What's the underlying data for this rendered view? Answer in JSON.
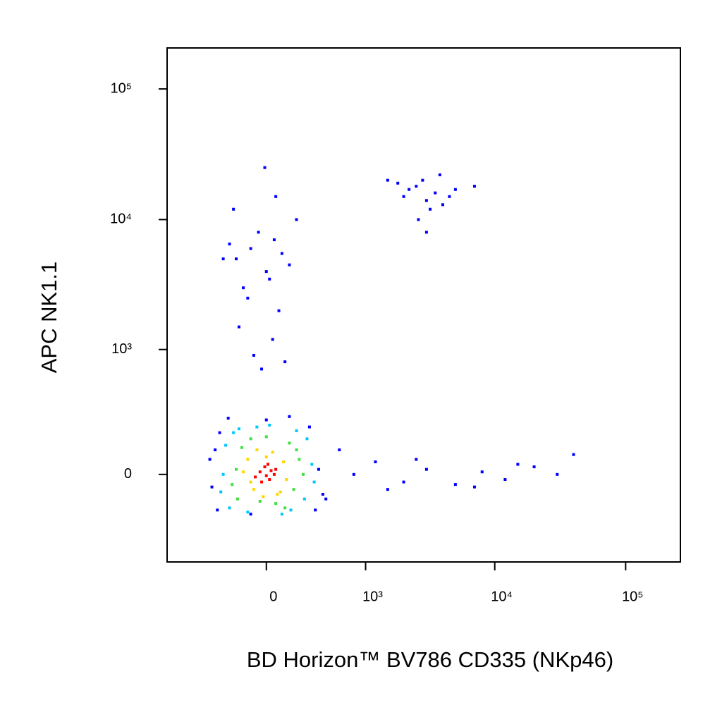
{
  "chart_data": {
    "type": "scatter",
    "x_label": "BD Horizon™ BV786 CD335 (NKp46)",
    "y_label": "APC NK1.1",
    "xscale": "biexponential",
    "yscale": "biexponential",
    "xlim": [
      -1000,
      262000
    ],
    "ylim": [
      -500,
      206000
    ],
    "xticks": [
      0,
      {
        "value": 1000,
        "label": "10³"
      },
      {
        "value": 10000,
        "label": "10⁴"
      },
      {
        "value": 100000,
        "label": "10⁵"
      }
    ],
    "yticks": [
      0,
      {
        "value": 1000,
        "label": "10³"
      },
      {
        "value": 10000,
        "label": "10⁴"
      },
      {
        "value": 100000,
        "label": "10⁵"
      }
    ],
    "series": [
      {
        "color": "#0000ff",
        "x": [
          -400,
          380,
          -370,
          420,
          -350,
          300,
          -420,
          450,
          -260,
          0,
          150,
          -100,
          350,
          -330,
          -200,
          -100,
          0,
          50,
          -150,
          100,
          -50,
          -250,
          150,
          -300,
          20,
          -120,
          80,
          -180,
          40,
          -80,
          120,
          -30,
          200,
          -220,
          60,
          -10,
          2000,
          3000,
          2500,
          3500,
          4000,
          2800,
          3200,
          2200,
          1800,
          4500,
          5000,
          2600,
          3800,
          7000,
          1500,
          3000,
          800,
          1200,
          2000,
          3000,
          5000,
          8000,
          12000,
          20000,
          40000,
          600,
          1500,
          2500,
          7000,
          15000,
          30000
        ],
        "values": [
          -50,
          20,
          100,
          -80,
          -150,
          210,
          60,
          -100,
          260,
          250,
          270,
          -170,
          -150,
          180,
          5000,
          6000,
          4000,
          7000,
          3000,
          5500,
          8000,
          6500,
          4500,
          5000,
          3500,
          2500,
          2000,
          1500,
          1200,
          900,
          800,
          700,
          10000,
          12000,
          15000,
          25000,
          15000,
          14000,
          18000,
          16000,
          13000,
          20000,
          12000,
          17000,
          19000,
          15000,
          17000,
          10000,
          22000,
          18000,
          20000,
          8000,
          0,
          50,
          -30,
          20,
          -40,
          10,
          -20,
          30,
          80,
          100,
          -60,
          60,
          -50,
          40,
          0
        ]
      },
      {
        "color": "#00c8ff",
        "x": [
          -300,
          260,
          -280,
          320,
          -250,
          280,
          -180,
          200,
          -120,
          100,
          -320,
          340,
          20,
          -60,
          160,
          -220
        ],
        "values": [
          0,
          -100,
          120,
          40,
          -140,
          150,
          200,
          190,
          -160,
          -170,
          -70,
          -30,
          220,
          210,
          -150,
          180
        ]
      },
      {
        "color": "#40e040",
        "x": [
          -200,
          180,
          -160,
          220,
          -230,
          150,
          -100,
          60,
          -40,
          250,
          -190,
          200,
          0,
          120
        ],
        "values": [
          20,
          -60,
          110,
          60,
          -40,
          130,
          150,
          -120,
          -110,
          0,
          -100,
          100,
          160,
          -140
        ]
      },
      {
        "color": "#ffd700",
        "x": [
          -120,
          90,
          -80,
          110,
          -150,
          40,
          -60,
          130,
          -20,
          70,
          -100,
          0
        ],
        "values": [
          60,
          -70,
          -60,
          50,
          10,
          90,
          100,
          -20,
          -90,
          -80,
          -30,
          70
        ]
      },
      {
        "color": "#ff0000",
        "x": [
          -40,
          20,
          -10,
          50,
          -70,
          10,
          -30,
          60,
          0,
          30
        ],
        "values": [
          10,
          -20,
          30,
          0,
          -10,
          40,
          -30,
          20,
          -5,
          15
        ]
      }
    ]
  }
}
